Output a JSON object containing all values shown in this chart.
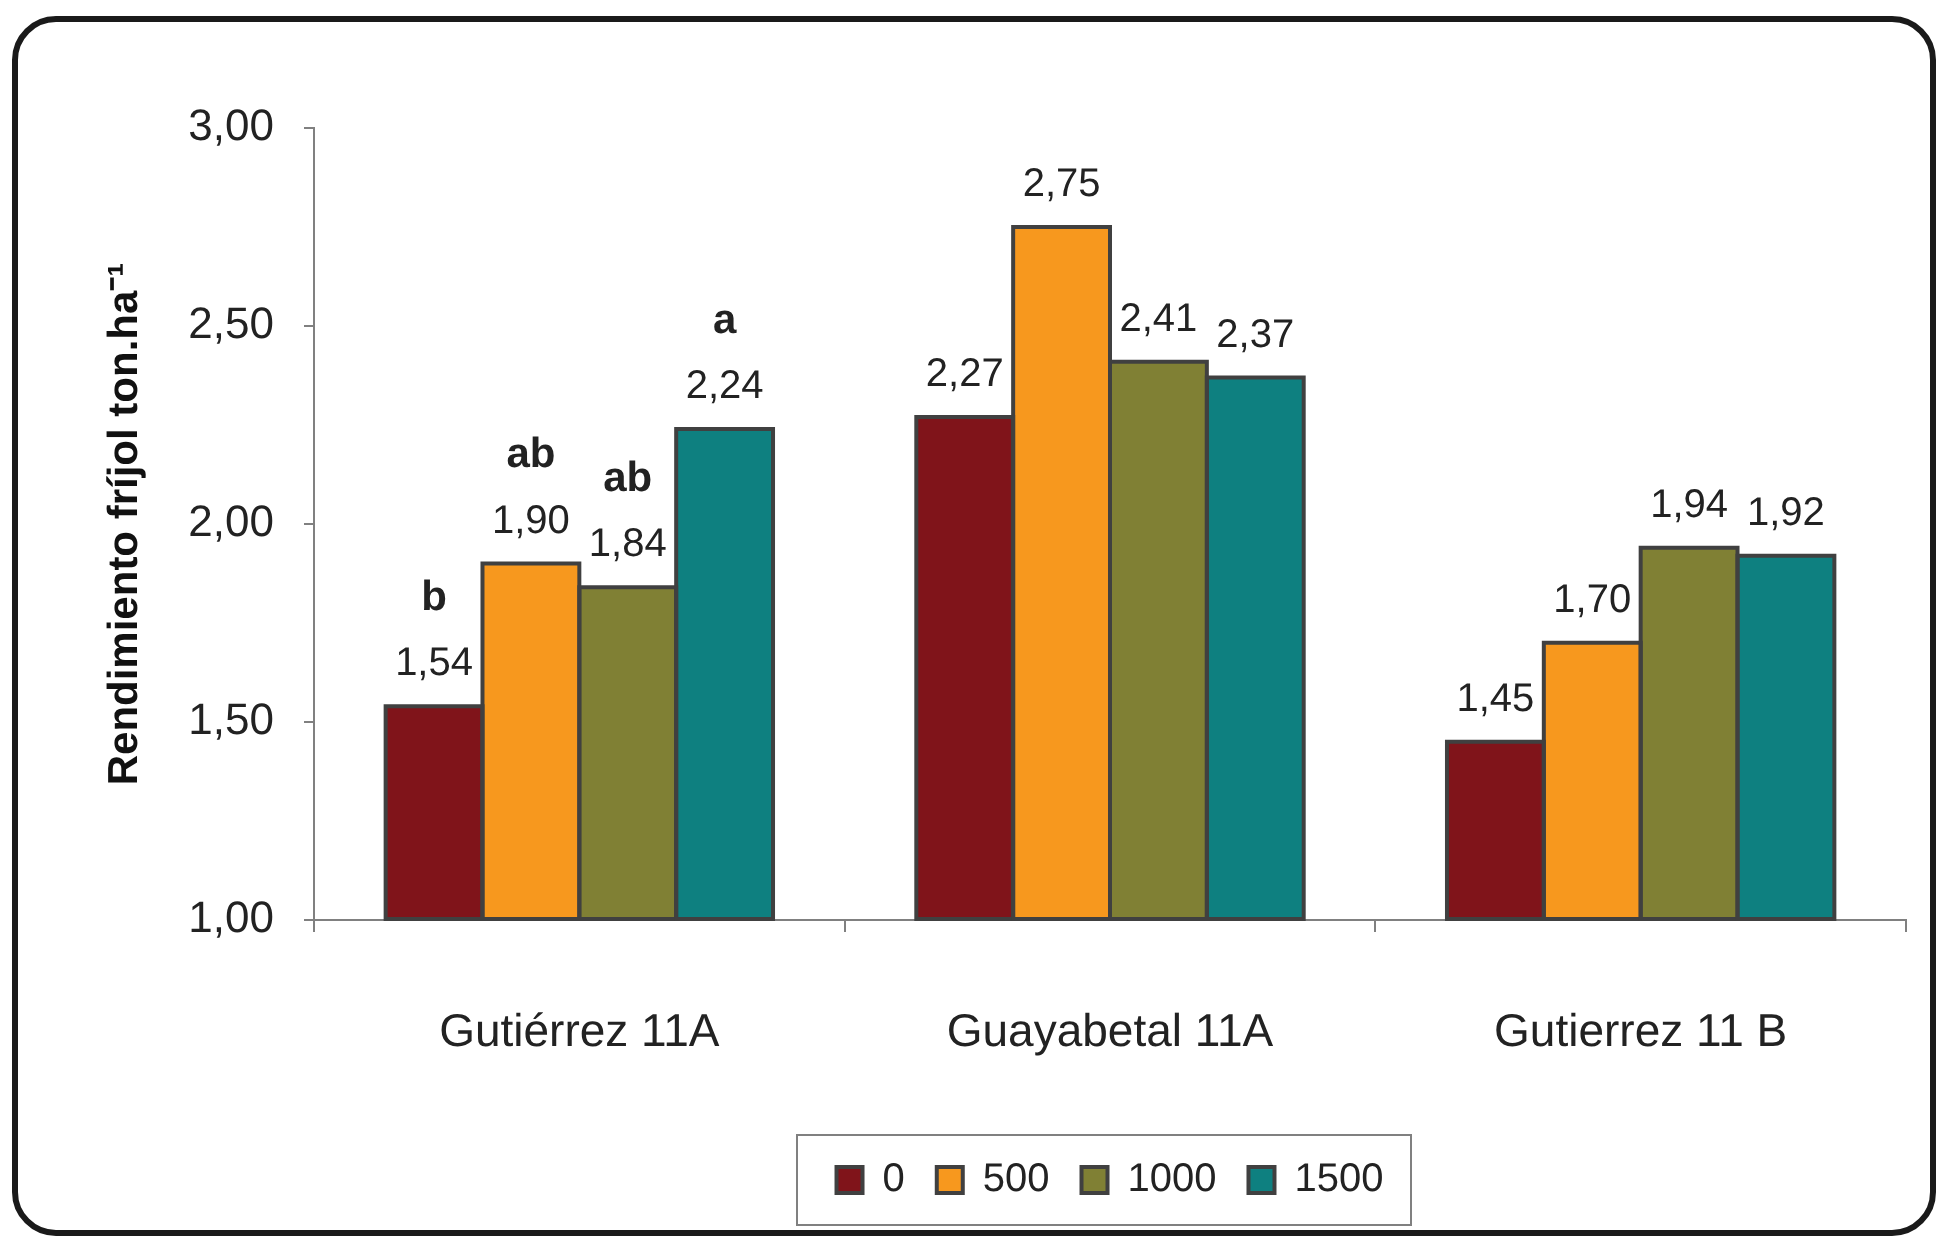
{
  "chart_data": {
    "type": "bar",
    "ylabel": "Rendimiento fríjol ton.ha⁻¹",
    "categories": [
      "Gutiérrez 11A",
      "Guayabetal 11A",
      "Gutierrez 11 B"
    ],
    "series": [
      {
        "name": "0",
        "color": "#80141a",
        "values": [
          1.54,
          2.27,
          1.45
        ],
        "value_labels": [
          "1,54",
          "2,27",
          "1,45"
        ]
      },
      {
        "name": "500",
        "color": "#f7981e",
        "values": [
          1.9,
          2.75,
          1.7
        ],
        "value_labels": [
          "1,90",
          "2,75",
          "1,70"
        ]
      },
      {
        "name": "1000",
        "color": "#808034",
        "values": [
          1.84,
          2.41,
          1.94
        ],
        "value_labels": [
          "1,84",
          "2,41",
          "1,94"
        ]
      },
      {
        "name": "1500",
        "color": "#0e8080",
        "values": [
          2.24,
          2.37,
          1.92
        ],
        "value_labels": [
          "2,24",
          "2,37",
          "1,92"
        ]
      }
    ],
    "ylim": [
      1,
      3
    ],
    "yticks": [
      {
        "value": 1,
        "label": "1,00"
      },
      {
        "value": 1.5,
        "label": "1,50"
      },
      {
        "value": 2,
        "label": "2,00"
      },
      {
        "value": 2.5,
        "label": "2,50"
      },
      {
        "value": 3,
        "label": "3,00"
      }
    ],
    "grid": false,
    "legend": "bottom",
    "annotations": [
      "b",
      "ab",
      "ab",
      "a"
    ]
  }
}
